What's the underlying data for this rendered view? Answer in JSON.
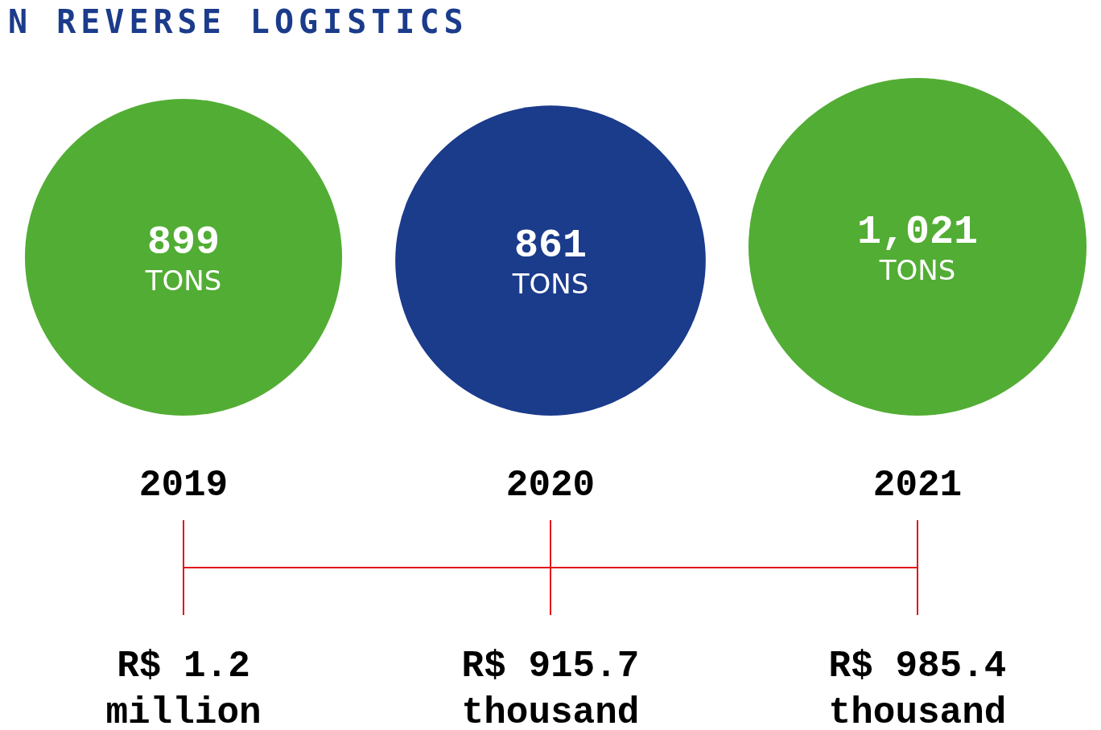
{
  "chart_data": {
    "type": "other",
    "title": "N REVERSE LOGISTICS",
    "categories": [
      "2019",
      "2020",
      "2021"
    ],
    "values": [
      899,
      861,
      1021
    ],
    "colors": [
      "#52ad34",
      "#1b3b8b",
      "#52ad34"
    ],
    "value_labels": [
      "899 TONS",
      "861 TONS",
      "1,021 TONS"
    ],
    "annotations": [
      "R$ 1.2 million",
      "R$ 915.7 thousand",
      "R$ 985.4 thousand"
    ]
  }
}
